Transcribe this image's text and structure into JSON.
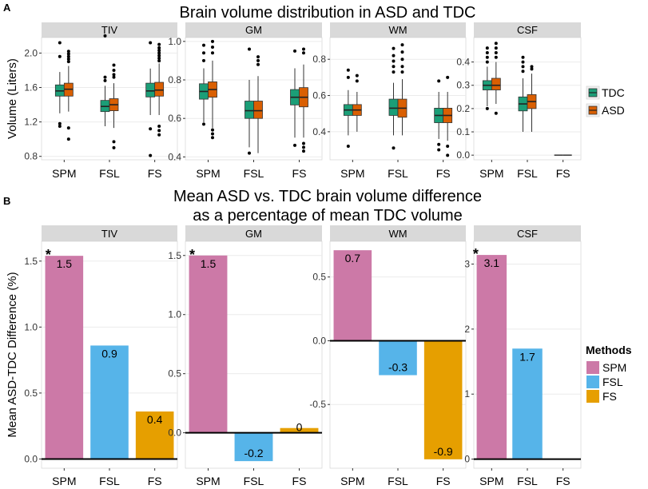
{
  "figure": {
    "panel_a_label": "A",
    "panel_b_label": "B",
    "panel_a_title": "Brain volume distribution in ASD and TDC",
    "panel_b_title_line1": "Mean ASD vs. TDC brain volume difference",
    "panel_b_title_line2": "as a percentage of mean TDC volume"
  },
  "colors": {
    "TDC": "#1b9e77",
    "ASD": "#d95f02",
    "SPM": "#cc79a7",
    "FSL": "#56b4e9",
    "FS": "#e69f00",
    "strip": "#d9d9d9",
    "grid": "#ebebeb"
  },
  "chart_data": [
    {
      "type": "box",
      "title": "Brain volume distribution in ASD and TDC",
      "ylabel": "Volume (Liters)",
      "xlabel": "",
      "categories": [
        "SPM",
        "FSL",
        "FS"
      ],
      "legend": {
        "title": "",
        "entries": [
          "TDC",
          "ASD"
        ],
        "position": "right"
      },
      "facets": [
        {
          "name": "TIV",
          "ylim": [
            0.76,
            2.18
          ],
          "yticks": [
            0.8,
            1.2,
            1.6,
            2.0
          ],
          "tick_labels": [
            "0.8",
            "1.2",
            "1.6",
            "2.0"
          ],
          "groups": [
            {
              "method": "SPM",
              "TDC": {
                "lw": 1.3,
                "q1": 1.5,
                "median": 1.56,
                "q3": 1.63,
                "uw": 1.78,
                "outliers": [
                  2.12,
                  1.96,
                  1.15,
                  1.18
                ]
              },
              "ASD": {
                "lw": 1.32,
                "q1": 1.5,
                "median": 1.58,
                "q3": 1.65,
                "uw": 1.85,
                "outliers": [
                  2.02,
                  1.99,
                  1.96,
                  1.93,
                  1.9,
                  1.13,
                  1.0
                ]
              }
            },
            {
              "method": "FSL",
              "TDC": {
                "lw": 1.15,
                "q1": 1.32,
                "median": 1.38,
                "q3": 1.45,
                "uw": 1.62,
                "outliers": [
                  2.2,
                  1.72,
                  1.68
                ]
              },
              "ASD": {
                "lw": 1.13,
                "q1": 1.33,
                "median": 1.4,
                "q3": 1.47,
                "uw": 1.65,
                "outliers": [
                  1.86,
                  1.8,
                  1.75,
                  1.72,
                  0.97,
                  0.9
                ]
              }
            },
            {
              "method": "FS",
              "TDC": {
                "lw": 1.28,
                "q1": 1.49,
                "median": 1.56,
                "q3": 1.65,
                "uw": 1.82,
                "outliers": [
                  2.12,
                  1.12,
                  0.81
                ]
              },
              "ASD": {
                "lw": 1.28,
                "q1": 1.5,
                "median": 1.57,
                "q3": 1.66,
                "uw": 1.88,
                "outliers": [
                  2.1,
                  2.06,
                  2.03,
                  2.0,
                  1.97,
                  1.94,
                  1.91,
                  1.15,
                  1.1,
                  1.05
                ]
              }
            }
          ]
        },
        {
          "name": "GM",
          "ylim": [
            0.385,
            1.02
          ],
          "yticks": [
            0.4,
            0.6,
            0.8,
            1.0
          ],
          "tick_labels": [
            "0.4",
            "0.6",
            "0.8",
            "1.0"
          ],
          "groups": [
            {
              "method": "SPM",
              "TDC": {
                "lw": 0.58,
                "q1": 0.7,
                "median": 0.74,
                "q3": 0.78,
                "uw": 0.86,
                "outliers": [
                  0.98,
                  0.94,
                  0.9,
                  0.57
                ]
              },
              "ASD": {
                "lw": 0.55,
                "q1": 0.71,
                "median": 0.75,
                "q3": 0.79,
                "uw": 0.9,
                "outliers": [
                  1.0,
                  0.97,
                  0.94,
                  0.54,
                  0.52,
                  0.5
                ]
              }
            },
            {
              "method": "FSL",
              "TDC": {
                "lw": 0.45,
                "q1": 0.6,
                "median": 0.64,
                "q3": 0.69,
                "uw": 0.8,
                "outliers": [
                  0.96,
                  0.42
                ]
              },
              "ASD": {
                "lw": 0.42,
                "q1": 0.6,
                "median": 0.64,
                "q3": 0.69,
                "uw": 0.82,
                "outliers": [
                  0.92,
                  0.9,
                  0.88
                ]
              }
            },
            {
              "method": "FS",
              "TDC": {
                "lw": 0.5,
                "q1": 0.67,
                "median": 0.71,
                "q3": 0.75,
                "uw": 0.86,
                "outliers": [
                  0.95,
                  0.46
                ]
              },
              "ASD": {
                "lw": 0.5,
                "q1": 0.66,
                "median": 0.71,
                "q3": 0.76,
                "uw": 0.88,
                "outliers": [
                  0.96,
                  0.94,
                  0.47,
                  0.45,
                  0.43
                ]
              }
            }
          ]
        },
        {
          "name": "WM",
          "ylim": [
            0.245,
            0.92
          ],
          "yticks": [
            0.4,
            0.6,
            0.8
          ],
          "tick_labels": [
            "0.4",
            "0.6",
            "0.8"
          ],
          "groups": [
            {
              "method": "SPM",
              "TDC": {
                "lw": 0.38,
                "q1": 0.49,
                "median": 0.52,
                "q3": 0.55,
                "uw": 0.63,
                "outliers": [
                  0.74,
                  0.7,
                  0.32
                ]
              },
              "ASD": {
                "lw": 0.4,
                "q1": 0.49,
                "median": 0.52,
                "q3": 0.55,
                "uw": 0.62,
                "outliers": [
                  0.71,
                  0.68
                ]
              }
            },
            {
              "method": "FSL",
              "TDC": {
                "lw": 0.38,
                "q1": 0.49,
                "median": 0.53,
                "q3": 0.58,
                "uw": 0.67,
                "outliers": [
                  0.86,
                  0.82,
                  0.79,
                  0.76,
                  0.73,
                  0.31
                ]
              },
              "ASD": {
                "lw": 0.38,
                "q1": 0.48,
                "median": 0.53,
                "q3": 0.58,
                "uw": 0.69,
                "outliers": [
                  0.88,
                  0.84,
                  0.8,
                  0.76,
                  0.73
                ]
              }
            },
            {
              "method": "FS",
              "TDC": {
                "lw": 0.36,
                "q1": 0.45,
                "median": 0.49,
                "q3": 0.53,
                "uw": 0.62,
                "outliers": [
                  0.68,
                  0.33,
                  0.3
                ]
              },
              "ASD": {
                "lw": 0.35,
                "q1": 0.45,
                "median": 0.49,
                "q3": 0.53,
                "uw": 0.62,
                "outliers": [
                  0.7,
                  0.32,
                  0.27
                ]
              }
            }
          ]
        },
        {
          "name": "CSF",
          "ylim": [
            -0.02,
            0.505
          ],
          "yticks": [
            0.0,
            0.1,
            0.2,
            0.3,
            0.4
          ],
          "tick_labels": [
            "0.0",
            "0.1",
            "0.2",
            "0.3",
            "0.4"
          ],
          "groups": [
            {
              "method": "SPM",
              "TDC": {
                "lw": 0.21,
                "q1": 0.28,
                "median": 0.3,
                "q3": 0.32,
                "uw": 0.38,
                "outliers": [
                  0.46,
                  0.44,
                  0.42,
                  0.4,
                  0.2
                ]
              },
              "ASD": {
                "lw": 0.22,
                "q1": 0.28,
                "median": 0.3,
                "q3": 0.33,
                "uw": 0.4,
                "outliers": [
                  0.48,
                  0.46,
                  0.44,
                  0.42,
                  0.18
                ]
              }
            },
            {
              "method": "FSL",
              "TDC": {
                "lw": 0.1,
                "q1": 0.19,
                "median": 0.22,
                "q3": 0.25,
                "uw": 0.33,
                "outliers": [
                  0.42,
                  0.4,
                  0.38,
                  0.36
                ]
              },
              "ASD": {
                "lw": 0.1,
                "q1": 0.2,
                "median": 0.23,
                "q3": 0.26,
                "uw": 0.35,
                "outliers": [
                  0.38,
                  0.37
                ]
              }
            },
            {
              "method": "FS",
              "TDC": {
                "lw": 0,
                "q1": 0,
                "median": 0,
                "q3": 0,
                "uw": 0,
                "outliers": []
              },
              "ASD": {
                "lw": 0,
                "q1": 0,
                "median": 0,
                "q3": 0,
                "uw": 0,
                "outliers": []
              }
            }
          ]
        }
      ]
    },
    {
      "type": "bar",
      "title": "Mean ASD vs. TDC brain volume difference as a percentage of mean TDC volume",
      "ylabel": "Mean ASD-TDC Difference (%)",
      "xlabel": "",
      "categories": [
        "SPM",
        "FSL",
        "FS"
      ],
      "legend": {
        "title": "Methods",
        "entries": [
          "SPM",
          "FSL",
          "FS"
        ],
        "position": "right"
      },
      "facets": [
        {
          "name": "TIV",
          "values": [
            1.54,
            0.86,
            0.36
          ],
          "labels": [
            "1.5",
            "0.9",
            "0.4"
          ],
          "significant": [
            true,
            false,
            false
          ],
          "ylim": [
            -0.07,
            1.65
          ],
          "yticks": [
            0.0,
            0.5,
            1.0,
            1.5
          ],
          "tick_labels": [
            "0.0",
            "0.5",
            "1.0",
            "1.5"
          ]
        },
        {
          "name": "GM",
          "values": [
            1.5,
            -0.24,
            0.04
          ],
          "labels": [
            "1.5",
            "-0.2",
            "0"
          ],
          "significant": [
            true,
            false,
            false
          ],
          "ylim": [
            -0.3,
            1.62
          ],
          "yticks": [
            0.0,
            0.5,
            1.0,
            1.5
          ],
          "tick_labels": [
            "0.0",
            "0.5",
            "1.0",
            "1.5"
          ]
        },
        {
          "name": "WM",
          "values": [
            0.71,
            -0.27,
            -0.93
          ],
          "labels": [
            "0.7",
            "-0.3",
            "-0.9"
          ],
          "significant": [
            false,
            false,
            false
          ],
          "ylim": [
            -1.0,
            0.78
          ],
          "yticks": [
            -0.5,
            0.0,
            0.5
          ],
          "tick_labels": [
            "-0.5",
            "0.0",
            "0.5"
          ]
        },
        {
          "name": "CSF",
          "values": [
            3.14,
            1.7,
            0.0
          ],
          "labels": [
            "3.1",
            "1.7",
            ""
          ],
          "significant": [
            true,
            false,
            false
          ],
          "ylim": [
            -0.14,
            3.35
          ],
          "yticks": [
            0,
            1,
            2,
            3
          ],
          "tick_labels": [
            "0",
            "1",
            "2",
            "3"
          ]
        }
      ],
      "significance_marker": "*"
    }
  ]
}
